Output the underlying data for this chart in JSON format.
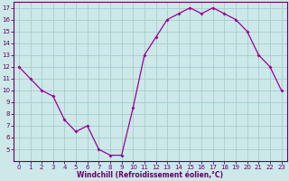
{
  "x": [
    0,
    1,
    2,
    3,
    4,
    5,
    6,
    7,
    8,
    9,
    10,
    11,
    12,
    13,
    14,
    15,
    16,
    17,
    18,
    19,
    20,
    21,
    22,
    23
  ],
  "y": [
    12,
    11,
    10,
    9.5,
    7.5,
    6.5,
    7,
    5,
    4.5,
    4.5,
    8.5,
    13,
    14.5,
    16,
    16.5,
    17,
    16.5,
    17,
    16.5,
    16,
    15,
    13,
    12,
    10
  ],
  "line_color": "#990099",
  "marker": "D",
  "marker_size": 2,
  "bg_color": "#cce8e8",
  "grid_color": "#aacccc",
  "xlabel": "Windchill (Refroidissement éolien,°C)",
  "xlabel_color": "#660066",
  "tick_color": "#660066",
  "spine_color": "#660066",
  "ylim": [
    4.0,
    17.5
  ],
  "xlim": [
    -0.5,
    23.5
  ],
  "yticks": [
    5,
    6,
    7,
    8,
    9,
    10,
    11,
    12,
    13,
    14,
    15,
    16,
    17
  ],
  "xticks": [
    0,
    1,
    2,
    3,
    4,
    5,
    6,
    7,
    8,
    9,
    10,
    11,
    12,
    13,
    14,
    15,
    16,
    17,
    18,
    19,
    20,
    21,
    22,
    23
  ],
  "tick_fontsize": 5.0,
  "xlabel_fontsize": 5.5
}
